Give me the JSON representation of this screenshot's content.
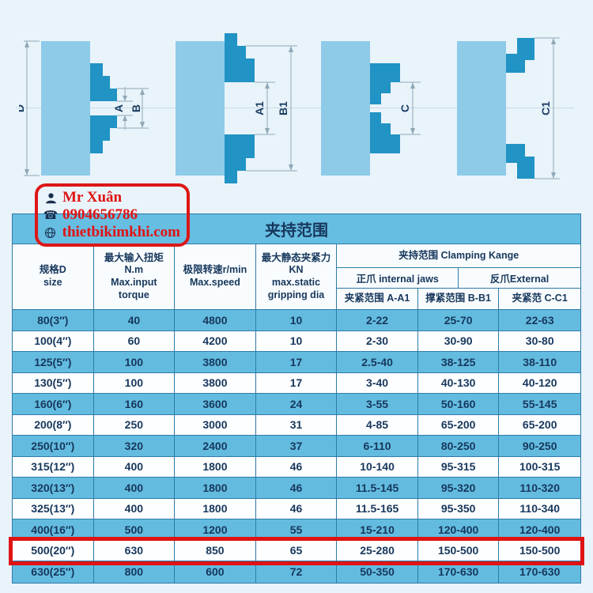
{
  "contact": {
    "name": "Mr Xuân",
    "phone": "0904656786",
    "website": "thietbikimkhi.com",
    "phone_icon": "☎"
  },
  "diagrams": {
    "d": "D",
    "a": "A",
    "b": "B",
    "a1": "A1",
    "b1": "B1",
    "c": "C",
    "c1": "C1"
  },
  "colors": {
    "accent_red": "#dd1717",
    "row_blue": "#63bce0",
    "text_navy": "#17375c",
    "chuck_body": "#8ecbe9",
    "chuck_jaw": "#2193c4",
    "grid_line": "#2f7ba8",
    "page_bg": "#e9f3fa"
  },
  "table": {
    "title": "夹持范围",
    "headers": {
      "size": "规格D\nsize",
      "torque": "最大输入扭矩N.m\nMax.input torque",
      "speed": "极限转速r/min\nMax.speed",
      "grip": "最大静态夹紧力KN\nmax.static\ngripping dia",
      "clamping_title": "夹持范围 Clamping Kange",
      "internal_jaws": "正爪 internal jaws",
      "external_jaws": "反爪External",
      "col_a": "夹紧范围 A-A1",
      "col_b": "撑紧范围 B-B1",
      "col_c": "夹紧范 C-C1"
    },
    "highlight_row": 11,
    "rows": [
      [
        "80(3″)",
        "40",
        "4800",
        "10",
        "2-22",
        "25-70",
        "22-63"
      ],
      [
        "100(4″)",
        "60",
        "4200",
        "10",
        "2-30",
        "30-90",
        "30-80"
      ],
      [
        "125(5″)",
        "100",
        "3800",
        "17",
        "2.5-40",
        "38-125",
        "38-110"
      ],
      [
        "130(5″)",
        "100",
        "3800",
        "17",
        "3-40",
        "40-130",
        "40-120"
      ],
      [
        "160(6″)",
        "160",
        "3600",
        "24",
        "3-55",
        "50-160",
        "55-145"
      ],
      [
        "200(8″)",
        "250",
        "3000",
        "31",
        "4-85",
        "65-200",
        "65-200"
      ],
      [
        "250(10″)",
        "320",
        "2400",
        "37",
        "6-110",
        "80-250",
        "90-250"
      ],
      [
        "315(12″)",
        "400",
        "1800",
        "46",
        "10-140",
        "95-315",
        "100-315"
      ],
      [
        "320(13″)",
        "400",
        "1800",
        "46",
        "11.5-145",
        "95-320",
        "110-320"
      ],
      [
        "325(13″)",
        "400",
        "1800",
        "46",
        "11.5-165",
        "95-350",
        "110-340"
      ],
      [
        "400(16″)",
        "500",
        "1200",
        "55",
        "15-210",
        "120-400",
        "120-400"
      ],
      [
        "500(20″)",
        "630",
        "850",
        "65",
        "25-280",
        "150-500",
        "150-500"
      ],
      [
        "630(25″)",
        "800",
        "600",
        "72",
        "50-350",
        "170-630",
        "170-630"
      ]
    ]
  }
}
